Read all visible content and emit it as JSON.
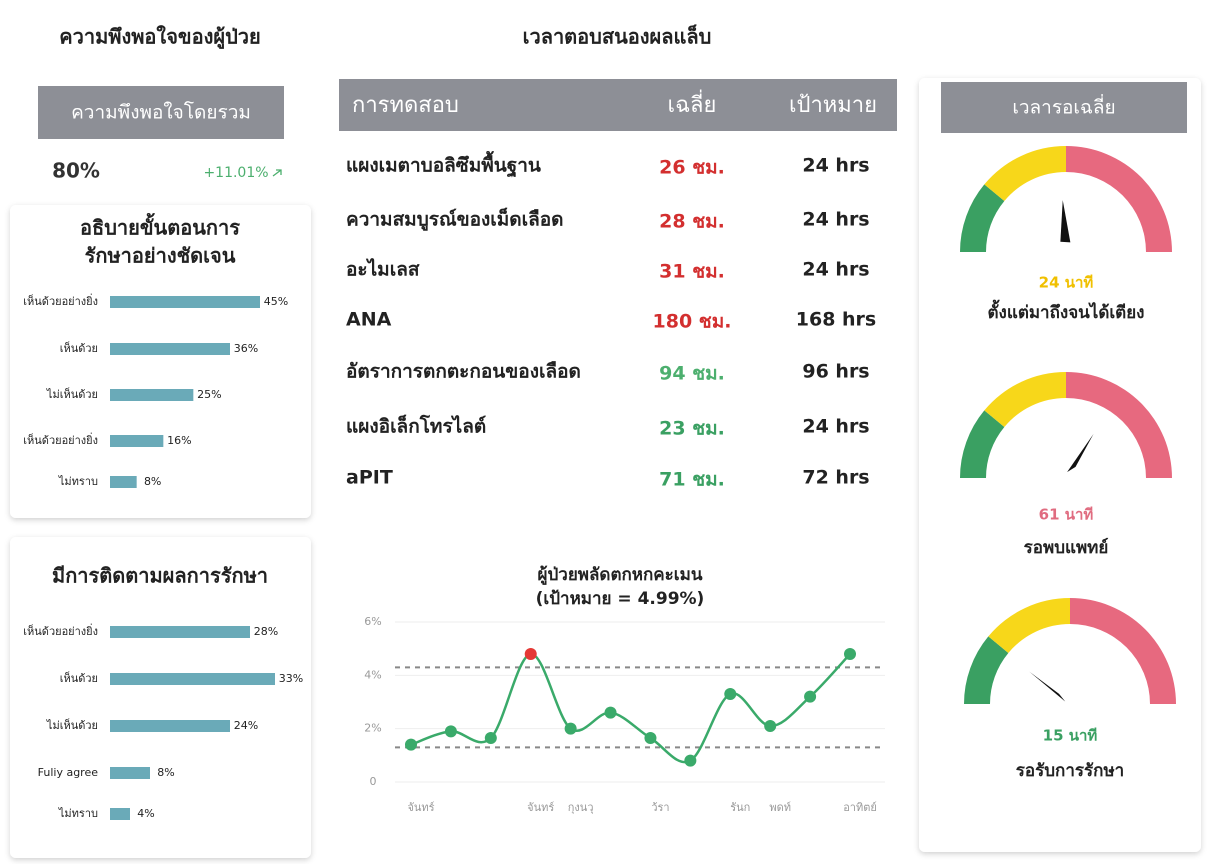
{
  "header": {
    "left_title": "ความพึงพอใจของผู้ป่วย",
    "center_title": "เวลาตอบสนองผลแล็บ"
  },
  "satisfaction": {
    "label": "ความพึงพอใจโดยรวม",
    "value": "80%",
    "change": "+11.01%"
  },
  "lab_table": {
    "columns": [
      "การทดสอบ",
      "เฉลี่ย",
      "เป้าหมาย"
    ],
    "rows": [
      [
        "แผงเมตาบอลิซึมพื้นฐาน",
        "26 ชม.",
        "24 hrs"
      ],
      [
        "ความสมบูรณ์ของเม็ดเลือด",
        "28 ชม.",
        "24 hrs"
      ],
      [
        "อะไมเลส",
        "31 ชม.",
        "24 hrs"
      ],
      [
        "ANA",
        "180 ชม.",
        "168 hrs"
      ],
      [
        "อัตราการตกตะกอนของเลือด",
        "94 ชม.",
        "96 hrs"
      ],
      [
        "แผงอิเล็กโทรไลต์",
        "23 ชม.",
        "24 hrs"
      ],
      [
        "aPIT",
        "71 ชม.",
        "72 hrs"
      ]
    ],
    "avg_colors": [
      "#d32f2f",
      "#d32f2f",
      "#d32f2f",
      "#d32f2f",
      "#4caf6e",
      "#3aa062",
      "#3aa062"
    ]
  },
  "wait_times": {
    "title": "เวลารอเฉลี่ย"
  },
  "chart_data": [
    {
      "type": "bar",
      "title": [
        "อธิบายขั้นตอนการ",
        "รักษาอย่างชัดเจน"
      ],
      "categories": [
        "เห็นด้วยอย่างยิ่ง",
        "เห็นด้วย",
        "ไม่เห็นด้วย",
        "เห็นด้วยอย่างยิ่ง",
        "ไม่ทราบ"
      ],
      "values": [
        45,
        36,
        25,
        16,
        8
      ],
      "value_labels": [
        "45%",
        "36%",
        "25%",
        "16%",
        "8%"
      ],
      "color": "#6aaab8",
      "xlim": [
        0,
        60
      ]
    },
    {
      "type": "bar",
      "title": [
        "มีการติดตามผลการรักษา"
      ],
      "categories": [
        "เห็นด้วยอย่างยิ่ง",
        "เห็นด้วย",
        "ไม่เห็นด้วย",
        "Fuliy agree",
        "ไม่ทราบ"
      ],
      "values": [
        28,
        33,
        24,
        8,
        4
      ],
      "value_labels": [
        "28%",
        "33%",
        "24%",
        "8%",
        "4%"
      ],
      "color": "#6aaab8",
      "xlim": [
        0,
        40
      ]
    },
    {
      "type": "line",
      "title": [
        "ผู้ป่วยพลัดตกหกคะเมน",
        "(เป้าหมาย = 4.99%)"
      ],
      "categories": [
        "จันทร์",
        null,
        null,
        "จันทร์",
        "กุงนวุ",
        null,
        "ว้รา",
        null,
        "รันก",
        "พดท์",
        null,
        "อาทิตย์"
      ],
      "values": [
        1.4,
        1.9,
        1.65,
        4.8,
        2.0,
        2.6,
        1.65,
        0.8,
        3.3,
        2.1,
        3.2,
        4.8
      ],
      "color": "#3aaa6a",
      "point_colors": [
        "#3aaa6a",
        "#3aaa6a",
        "#3aaa6a",
        "#e53935",
        "#3aaa6a",
        "#3aaa6a",
        "#3aaa6a",
        "#3aaa6a",
        "#3aaa6a",
        "#3aaa6a",
        "#3aaa6a",
        "#3aaa6a"
      ],
      "reference_lines": [
        4.3,
        1.3
      ],
      "ylim": [
        0,
        6
      ],
      "yticks": [
        0,
        {
          "value": 2,
          "label": "2%"
        },
        {
          "value": 4,
          "label": "4%"
        },
        {
          "value": 6,
          "label": "6%"
        }
      ],
      "grid": true
    },
    {
      "type": "gauge",
      "value": 24,
      "value_label": "24 นาที",
      "label": "ตั้งแต่มาถึงจนได้เตียง",
      "ylim": [
        0,
        50
      ],
      "label_color": "#f0c000"
    },
    {
      "type": "gauge",
      "value": 61,
      "value_label": "61 นาที",
      "label": "รอพบแพทย์",
      "ylim": [
        0,
        90
      ],
      "label_color": "#e06c80"
    },
    {
      "type": "gauge",
      "value": 15,
      "value_label": "15 นาที",
      "label": "รอรับการรักษา",
      "ylim": [
        0,
        70
      ],
      "label_color": "#3aa062"
    }
  ]
}
